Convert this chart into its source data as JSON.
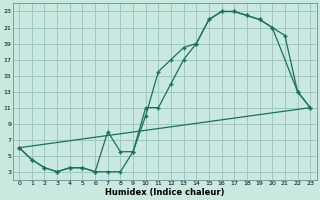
{
  "xlabel": "Humidex (Indice chaleur)",
  "bg_color": "#c8e8e0",
  "grid_color": "#a0c8c0",
  "line_color": "#1a7060",
  "xlim": [
    -0.5,
    23.5
  ],
  "ylim": [
    2,
    24
  ],
  "xticks": [
    0,
    1,
    2,
    3,
    4,
    5,
    6,
    7,
    8,
    9,
    10,
    11,
    12,
    13,
    14,
    15,
    16,
    17,
    18,
    19,
    20,
    21,
    22,
    23
  ],
  "yticks": [
    3,
    5,
    7,
    9,
    11,
    13,
    15,
    17,
    19,
    21,
    23
  ],
  "line1_x": [
    0,
    1,
    2,
    3,
    4,
    5,
    6,
    7,
    8,
    9,
    10,
    11,
    12,
    13,
    14,
    15,
    16,
    17,
    18,
    19,
    20,
    21,
    22,
    23
  ],
  "line1_y": [
    6,
    4.5,
    3.5,
    3,
    3.5,
    3.5,
    3,
    3,
    3,
    5.5,
    10,
    15.5,
    17,
    18.5,
    19,
    22,
    23,
    23,
    22.5,
    22,
    21,
    20,
    13,
    11
  ],
  "line2_x": [
    0,
    1,
    2,
    3,
    4,
    5,
    6,
    7,
    8,
    9,
    10,
    11,
    12,
    13,
    14,
    15,
    16,
    17,
    18,
    19,
    20,
    22,
    23
  ],
  "line2_y": [
    6,
    4.5,
    3.5,
    3,
    3.5,
    3.5,
    3,
    8,
    5.5,
    5.5,
    11,
    11,
    14,
    17,
    19,
    22,
    23,
    23,
    22.5,
    22,
    21,
    13,
    11
  ],
  "line3_x": [
    0,
    23
  ],
  "line3_y": [
    6,
    11
  ]
}
